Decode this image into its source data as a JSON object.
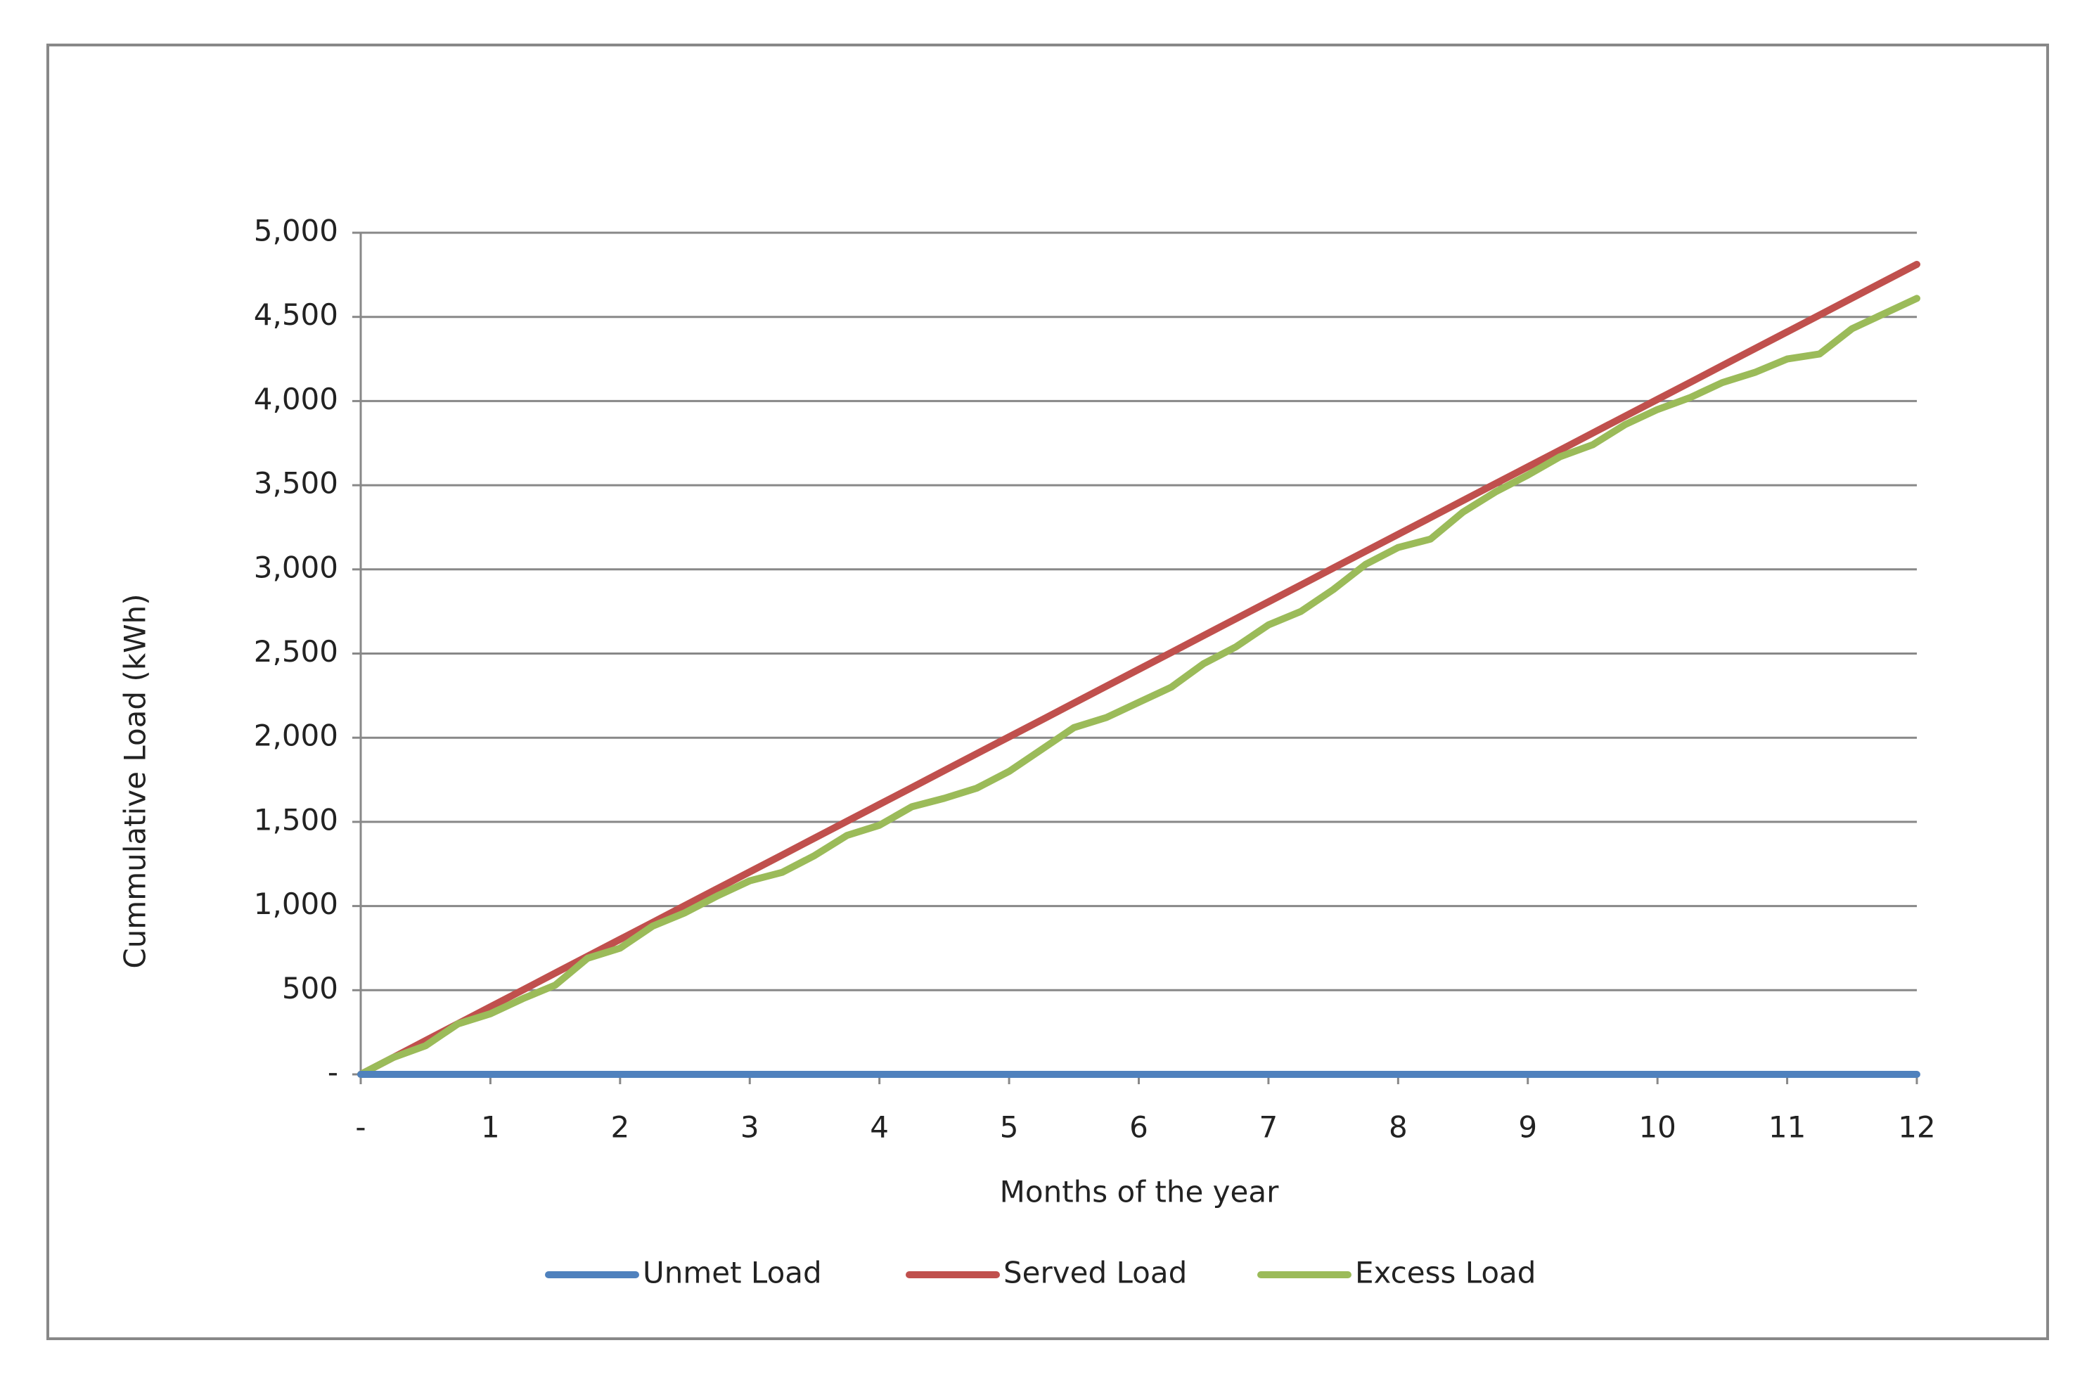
{
  "chart_data": {
    "type": "line",
    "x_label": "Months of the year",
    "y_label": "Cummulative Load (kWh)",
    "x": [
      0,
      0.25,
      0.5,
      0.75,
      1,
      1.25,
      1.5,
      1.75,
      2,
      2.25,
      2.5,
      2.75,
      3,
      3.25,
      3.5,
      3.75,
      4,
      4.25,
      4.5,
      4.75,
      5,
      5.25,
      5.5,
      5.75,
      6,
      6.25,
      6.5,
      6.75,
      7,
      7.25,
      7.5,
      7.75,
      8,
      8.25,
      8.5,
      8.75,
      9,
      9.25,
      9.5,
      9.75,
      10,
      10.25,
      10.5,
      10.75,
      11,
      11.25,
      11.5,
      11.75,
      12
    ],
    "series": [
      {
        "name": "Unmet Load",
        "color": "#4f81bd",
        "values": [
          0,
          0,
          0,
          0,
          0,
          0,
          0,
          0,
          0,
          0,
          0,
          0,
          0,
          0,
          0,
          0,
          0,
          0,
          0,
          0,
          0,
          0,
          0,
          0,
          0,
          0,
          0,
          0,
          0,
          0,
          0,
          0,
          0,
          0,
          0,
          0,
          0,
          0,
          0,
          0,
          0,
          0,
          0,
          0,
          0,
          0,
          0,
          0,
          0
        ]
      },
      {
        "name": "Served Load",
        "color": "#c0504d",
        "values": [
          0,
          100,
          201,
          301,
          401,
          501,
          602,
          702,
          802,
          902,
          1003,
          1103,
          1203,
          1303,
          1404,
          1504,
          1604,
          1704,
          1805,
          1905,
          2005,
          2105,
          2206,
          2306,
          2406,
          2506,
          2607,
          2707,
          2807,
          2907,
          3008,
          3108,
          3208,
          3308,
          3409,
          3509,
          3609,
          3709,
          3810,
          3910,
          4010,
          4110,
          4211,
          4311,
          4411,
          4511,
          4612,
          4712,
          4812
        ]
      },
      {
        "name": "Excess Load",
        "color": "#9bbb59",
        "values": [
          0,
          100,
          170,
          300,
          360,
          450,
          530,
          690,
          750,
          880,
          960,
          1060,
          1150,
          1200,
          1300,
          1420,
          1480,
          1590,
          1640,
          1700,
          1800,
          1930,
          2060,
          2120,
          2210,
          2300,
          2440,
          2540,
          2670,
          2750,
          2880,
          3030,
          3130,
          3180,
          3340,
          3460,
          3560,
          3670,
          3740,
          3860,
          3950,
          4020,
          4110,
          4170,
          4250,
          4280,
          4430,
          4520,
          4610
        ]
      }
    ],
    "xlim": [
      0,
      12
    ],
    "xticks": [
      {
        "value": 0,
        "label": "-"
      },
      1,
      2,
      3,
      4,
      5,
      6,
      7,
      8,
      9,
      10,
      11,
      12
    ],
    "ylim": [
      0,
      5000
    ],
    "yticks": [
      {
        "value": 0,
        "label": "-"
      },
      {
        "value": 500,
        "label": "500"
      },
      {
        "value": 1000,
        "label": "1,000"
      },
      {
        "value": 1500,
        "label": "1,500"
      },
      {
        "value": 2000,
        "label": "2,000"
      },
      {
        "value": 2500,
        "label": "2,500"
      },
      {
        "value": 3000,
        "label": "3,000"
      },
      {
        "value": 3500,
        "label": "3,500"
      },
      {
        "value": 4000,
        "label": "4,000"
      },
      {
        "value": 4500,
        "label": "4,500"
      },
      {
        "value": 5000,
        "label": "5,000"
      }
    ],
    "grid": true,
    "legend": "bottom"
  }
}
